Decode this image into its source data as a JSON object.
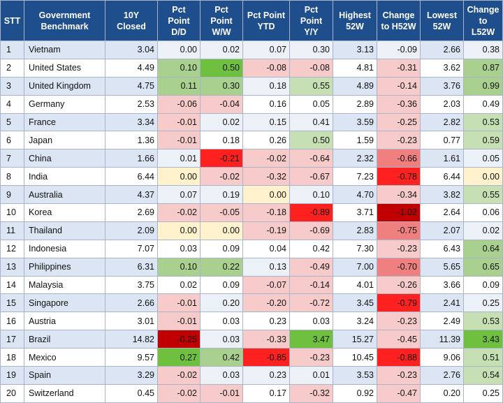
{
  "colors": {
    "header_bg": "#1f4e8c",
    "header_text": "#ffffff",
    "row_odd": "#dbe5f3",
    "row_even": "#ffffff",
    "pos_1": "#c6e0b4",
    "pos_2": "#a9d08e",
    "pos_3": "#70c040",
    "neg_1": "#f8cbcb",
    "neg_2": "#f08080",
    "neg_3": "#ff2020",
    "neg_4": "#c00000",
    "zero": "#fff2cc"
  },
  "headers": [
    "STT",
    "Government Benchmark",
    "10Y Closed",
    "Pct Point D/D",
    "Pct Point W/W",
    "Pct Point YTD",
    "Pct Point Y/Y",
    "Highest 52W",
    "Change to H52W",
    "Lowest 52W",
    "Change to L52W"
  ],
  "rows": [
    {
      "stt": "1",
      "name": "Vietnam",
      "c": [
        "3.04",
        "0.00",
        "0.02",
        "0.07",
        "0.30",
        "3.13",
        "-0.09",
        "2.66",
        "0.38"
      ],
      "s": [
        "",
        "",
        "",
        "",
        "",
        "",
        "",
        "",
        ""
      ]
    },
    {
      "stt": "2",
      "name": "United States",
      "c": [
        "4.49",
        "0.10",
        "0.50",
        "-0.08",
        "-0.08",
        "4.81",
        "-0.31",
        "3.62",
        "0.87"
      ],
      "s": [
        "",
        "pos_2",
        "pos_3",
        "neg_1",
        "neg_1",
        "",
        "neg_1",
        "",
        "pos_2"
      ]
    },
    {
      "stt": "3",
      "name": "United Kingdom",
      "c": [
        "4.75",
        "0.11",
        "0.30",
        "0.18",
        "0.55",
        "4.89",
        "-0.14",
        "3.76",
        "0.99"
      ],
      "s": [
        "",
        "pos_2",
        "pos_2",
        "",
        "pos_1",
        "",
        "neg_1",
        "",
        "pos_2"
      ]
    },
    {
      "stt": "4",
      "name": "Germany",
      "c": [
        "2.53",
        "-0.06",
        "-0.04",
        "0.16",
        "0.05",
        "2.89",
        "-0.36",
        "2.03",
        "0.49"
      ],
      "s": [
        "",
        "neg_1",
        "neg_1",
        "",
        "",
        "",
        "neg_1",
        "",
        ""
      ]
    },
    {
      "stt": "5",
      "name": "France",
      "c": [
        "3.34",
        "-0.01",
        "0.02",
        "0.15",
        "0.41",
        "3.59",
        "-0.25",
        "2.82",
        "0.53"
      ],
      "s": [
        "",
        "neg_1",
        "",
        "",
        "",
        "",
        "neg_1",
        "",
        "pos_1"
      ]
    },
    {
      "stt": "6",
      "name": "Japan",
      "c": [
        "1.36",
        "-0.01",
        "0.18",
        "0.26",
        "0.50",
        "1.59",
        "-0.23",
        "0.77",
        "0.59"
      ],
      "s": [
        "",
        "neg_1",
        "",
        "",
        "pos_1",
        "",
        "neg_1",
        "",
        "pos_1"
      ]
    },
    {
      "stt": "7",
      "name": "China",
      "c": [
        "1.66",
        "0.01",
        "-0.21",
        "-0.02",
        "-0.64",
        "2.32",
        "-0.66",
        "1.61",
        "0.05"
      ],
      "s": [
        "",
        "",
        "neg_3",
        "neg_1",
        "neg_1",
        "",
        "neg_2",
        "",
        ""
      ]
    },
    {
      "stt": "8",
      "name": "India",
      "c": [
        "6.44",
        "0.00",
        "-0.02",
        "-0.32",
        "-0.67",
        "7.23",
        "-0.78",
        "6.44",
        "0.00"
      ],
      "s": [
        "",
        "zero",
        "neg_1",
        "neg_1",
        "neg_1",
        "",
        "neg_3",
        "",
        "zero"
      ]
    },
    {
      "stt": "9",
      "name": "Australia",
      "c": [
        "4.37",
        "0.07",
        "0.19",
        "0.00",
        "0.10",
        "4.70",
        "-0.34",
        "3.82",
        "0.55"
      ],
      "s": [
        "",
        "",
        "",
        "zero",
        "",
        "",
        "neg_1",
        "",
        "pos_1"
      ]
    },
    {
      "stt": "10",
      "name": "Korea",
      "c": [
        "2.69",
        "-0.02",
        "-0.05",
        "-0.18",
        "-0.89",
        "3.71",
        "-1.02",
        "2.64",
        "0.06"
      ],
      "s": [
        "",
        "neg_1",
        "neg_1",
        "neg_1",
        "neg_3",
        "",
        "neg_4",
        "",
        ""
      ]
    },
    {
      "stt": "11",
      "name": "Thailand",
      "c": [
        "2.09",
        "0.00",
        "0.00",
        "-0.19",
        "-0.69",
        "2.83",
        "-0.75",
        "2.07",
        "0.02"
      ],
      "s": [
        "",
        "zero",
        "zero",
        "neg_1",
        "neg_1",
        "",
        "neg_2",
        "",
        ""
      ]
    },
    {
      "stt": "12",
      "name": "Indonesia",
      "c": [
        "7.07",
        "0.03",
        "0.09",
        "0.04",
        "0.42",
        "7.30",
        "-0.23",
        "6.43",
        "0.64"
      ],
      "s": [
        "",
        "",
        "",
        "",
        "",
        "",
        "neg_1",
        "",
        "pos_2"
      ]
    },
    {
      "stt": "13",
      "name": "Philippines",
      "c": [
        "6.31",
        "0.10",
        "0.22",
        "0.13",
        "-0.49",
        "7.00",
        "-0.70",
        "5.65",
        "0.65"
      ],
      "s": [
        "",
        "pos_2",
        "pos_2",
        "",
        "neg_1",
        "",
        "neg_2",
        "",
        "pos_2"
      ]
    },
    {
      "stt": "14",
      "name": "Malaysia",
      "c": [
        "3.75",
        "0.02",
        "0.09",
        "-0.07",
        "-0.14",
        "4.01",
        "-0.26",
        "3.66",
        "0.09"
      ],
      "s": [
        "",
        "",
        "",
        "neg_1",
        "neg_1",
        "",
        "neg_1",
        "",
        ""
      ]
    },
    {
      "stt": "15",
      "name": "Singapore",
      "c": [
        "2.66",
        "-0.01",
        "0.20",
        "-0.20",
        "-0.72",
        "3.45",
        "-0.79",
        "2.41",
        "0.25"
      ],
      "s": [
        "",
        "neg_1",
        "",
        "neg_1",
        "neg_1",
        "",
        "neg_3",
        "",
        ""
      ]
    },
    {
      "stt": "16",
      "name": "Austria",
      "c": [
        "3.01",
        "-0.01",
        "0.03",
        "0.23",
        "0.03",
        "3.24",
        "-0.23",
        "2.49",
        "0.53"
      ],
      "s": [
        "",
        "neg_1",
        "",
        "",
        "",
        "",
        "neg_1",
        "",
        "pos_1"
      ]
    },
    {
      "stt": "17",
      "name": "Brazil",
      "c": [
        "14.82",
        "-0.25",
        "0.03",
        "-0.33",
        "3.47",
        "15.27",
        "-0.45",
        "11.39",
        "3.43"
      ],
      "s": [
        "",
        "neg_4",
        "",
        "neg_1",
        "pos_3",
        "",
        "neg_1",
        "",
        "pos_3"
      ]
    },
    {
      "stt": "18",
      "name": "Mexico",
      "c": [
        "9.57",
        "0.27",
        "0.42",
        "-0.85",
        "-0.23",
        "10.45",
        "-0.88",
        "9.06",
        "0.51"
      ],
      "s": [
        "",
        "pos_3",
        "pos_2",
        "neg_3",
        "neg_1",
        "",
        "neg_3",
        "",
        "pos_1"
      ]
    },
    {
      "stt": "19",
      "name": "Spain",
      "c": [
        "3.29",
        "-0.02",
        "0.03",
        "0.23",
        "0.01",
        "3.53",
        "-0.23",
        "2.76",
        "0.54"
      ],
      "s": [
        "",
        "neg_1",
        "",
        "",
        "",
        "",
        "neg_1",
        "",
        "pos_1"
      ]
    },
    {
      "stt": "20",
      "name": "Switzerland",
      "c": [
        "0.45",
        "-0.02",
        "-0.01",
        "0.17",
        "-0.32",
        "0.92",
        "-0.47",
        "0.20",
        "0.25"
      ],
      "s": [
        "",
        "neg_1",
        "neg_1",
        "",
        "neg_1",
        "",
        "neg_1",
        "",
        ""
      ]
    }
  ]
}
